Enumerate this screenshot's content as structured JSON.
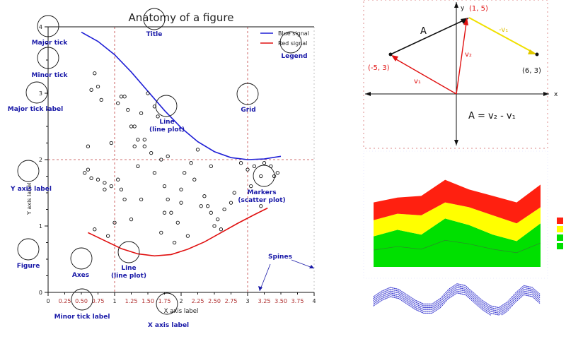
{
  "chart_data": [
    {
      "type": "line+scatter",
      "title": "Anatomy of a figure",
      "xlabel": "X axis label",
      "ylabel": "Y axis label",
      "xlim": [
        0,
        4
      ],
      "ylim": [
        0,
        4
      ],
      "grid": true,
      "legend_position": "top-right",
      "x_major_ticks": [
        "0",
        "1",
        "2",
        "3",
        "4"
      ],
      "x_minor_ticks": [
        "0.25",
        "0.50",
        "0.75",
        "1.25",
        "1.50",
        "1.75",
        "2.25",
        "2.50",
        "2.75",
        "3.25",
        "3.50",
        "3.75"
      ],
      "y_major_ticks": [
        "0",
        "1",
        "2",
        "3",
        "4"
      ],
      "series": [
        {
          "name": "Blue signal",
          "color": "#1f1fd6",
          "x": [
            0.5,
            0.75,
            1.0,
            1.25,
            1.5,
            1.75,
            2.0,
            2.25,
            2.5,
            2.75,
            3.0,
            3.25,
            3.5
          ],
          "y": [
            3.92,
            3.78,
            3.58,
            3.32,
            3.03,
            2.74,
            2.48,
            2.27,
            2.12,
            2.03,
            2.0,
            2.01,
            2.05
          ]
        },
        {
          "name": "Red signal",
          "color": "#e01010",
          "x": [
            0.6,
            0.85,
            1.1,
            1.35,
            1.6,
            1.85,
            2.1,
            2.35,
            2.6,
            2.85,
            3.1,
            3.3
          ],
          "y": [
            0.9,
            0.78,
            0.66,
            0.58,
            0.55,
            0.57,
            0.65,
            0.76,
            0.9,
            1.04,
            1.17,
            1.27
          ]
        },
        {
          "name": "Markers",
          "type": "scatter",
          "x": [
            0.6,
            0.7,
            0.75,
            0.8,
            0.6,
            0.55,
            0.65,
            0.75,
            0.85,
            0.95,
            0.9,
            1.05,
            1.1,
            1.15,
            1.25,
            1.3,
            1.4,
            1.35,
            1.45,
            1.6,
            1.55,
            1.7,
            1.75,
            1.8,
            1.85,
            1.95,
            2.0,
            2.05,
            2.15,
            2.2,
            2.3,
            2.35,
            2.45,
            2.5,
            2.55,
            2.6,
            2.75,
            2.8,
            2.9,
            1.05,
            1.1,
            1.2,
            1.25,
            1.35,
            1.65,
            1.5,
            1.6,
            1.45,
            1.7,
            1.9,
            2.1,
            2.4,
            0.95,
            0.7,
            3.0,
            3.1,
            3.2,
            3.25,
            3.35,
            3.4,
            3.45,
            1.15,
            1.8,
            2.25,
            2.65,
            0.65,
            0.85,
            1.0,
            3.05,
            3.2,
            1.3,
            1.4,
            1.75,
            2.0,
            2.45
          ],
          "y": [
            2.2,
            3.3,
            3.1,
            2.9,
            1.85,
            1.8,
            1.72,
            1.7,
            1.65,
            1.6,
            0.85,
            1.7,
            1.55,
            1.4,
            1.1,
            2.5,
            2.7,
            1.9,
            2.3,
            1.8,
            2.1,
            2.0,
            1.6,
            1.4,
            1.2,
            1.05,
            1.55,
            1.8,
            1.95,
            1.7,
            1.3,
            1.45,
            1.2,
            1.0,
            1.1,
            0.95,
            1.35,
            1.5,
            1.95,
            2.85,
            2.95,
            2.75,
            2.5,
            2.3,
            2.65,
            3.0,
            2.8,
            2.2,
            0.9,
            0.75,
            0.85,
            1.3,
            2.25,
            0.95,
            1.85,
            1.9,
            1.75,
            1.95,
            1.9,
            1.75,
            1.8,
            2.95,
            2.05,
            2.15,
            1.25,
            3.05,
            1.55,
            1.05,
            1.6,
            1.3,
            2.2,
            1.4,
            1.2,
            1.35,
            1.9
          ]
        }
      ],
      "annotations": [
        "Major tick",
        "Minor tick",
        "Major tick label",
        "Y axis label",
        "Figure",
        "Axes",
        "Line\n(line plot)",
        "Minor tick label",
        "X axis label",
        "Title",
        "Legend",
        "Grid",
        "Line\n(line plot)",
        "Markers\n(scatter plot)",
        "Spines"
      ]
    },
    {
      "type": "diagram",
      "points": [
        {
          "label": "(1, 5)",
          "x": 1,
          "y": 5
        },
        {
          "label": "(-5, 3)",
          "x": -5,
          "y": 3
        },
        {
          "label": "(6, 3)",
          "x": 6,
          "y": 3
        }
      ],
      "vector_labels": [
        "A",
        "v₂",
        "-v₁",
        "v₁"
      ],
      "axis_labels": [
        "x",
        "y"
      ],
      "equation": "A  =  v₂ - v₁"
    },
    {
      "type": "area",
      "stacked": true,
      "x": [
        0,
        1,
        2,
        3,
        4,
        5,
        6,
        7
      ],
      "series": [
        {
          "color": "#00e000",
          "values": [
            1.9,
            2.3,
            2.0,
            3.0,
            2.6,
            2.0,
            1.6,
            2.7
          ]
        },
        {
          "color": "#ffff00",
          "values": [
            1.0,
            1.0,
            1.2,
            1.0,
            1.1,
            1.2,
            1.1,
            1.0
          ]
        },
        {
          "color": "#ff2010",
          "values": [
            1.1,
            1.0,
            1.2,
            1.4,
            1.1,
            1.2,
            1.3,
            1.4
          ]
        }
      ],
      "ylim": [
        0,
        7
      ]
    },
    {
      "type": "scatter",
      "x": [
        0,
        1,
        2,
        3,
        4,
        5,
        6,
        7,
        8,
        9,
        10,
        11,
        12,
        13,
        14,
        15,
        16,
        17,
        18,
        19,
        20
      ],
      "y": [
        0.5,
        0.65,
        0.75,
        0.7,
        0.55,
        0.4,
        0.3,
        0.3,
        0.45,
        0.7,
        0.85,
        0.8,
        0.6,
        0.4,
        0.25,
        0.2,
        0.35,
        0.6,
        0.8,
        0.75,
        0.55
      ]
    }
  ],
  "labels": {
    "title": "Anatomy of a figure",
    "xlabel": "X axis label",
    "ylabel": "Y axis label",
    "legend_blue": "Blue signal",
    "legend_red": "Red signal",
    "ann_major_tick": "Major tick",
    "ann_minor_tick": "Minor tick",
    "ann_major_tick_label": "Major tick label",
    "ann_y_axis_label": "Y axis label",
    "ann_figure": "Figure",
    "ann_axes": "Axes",
    "ann_line_1": "Line",
    "ann_line_2": "(line plot)",
    "ann_minor_tick_label": "Minor tick label",
    "ann_x_axis_label": "X axis label",
    "ann_title": "Title",
    "ann_legend": "Legend",
    "ann_grid": "Grid",
    "ann_line_top_1": "Line",
    "ann_line_top_2": "(line plot)",
    "ann_markers_1": "Markers",
    "ann_markers_2": "(scatter plot)",
    "ann_spines": "Spines",
    "vec_pt_top": "(1, 5)",
    "vec_pt_left": "(-5, 3)",
    "vec_pt_right": "(6, 3)",
    "vec_A": "A",
    "vec_v2": "v₂",
    "vec_mv1": "-v₁",
    "vec_v1": "v₁",
    "vec_x": "x",
    "vec_y": "y",
    "vec_eq": "A  =  v₂ - v₁"
  }
}
